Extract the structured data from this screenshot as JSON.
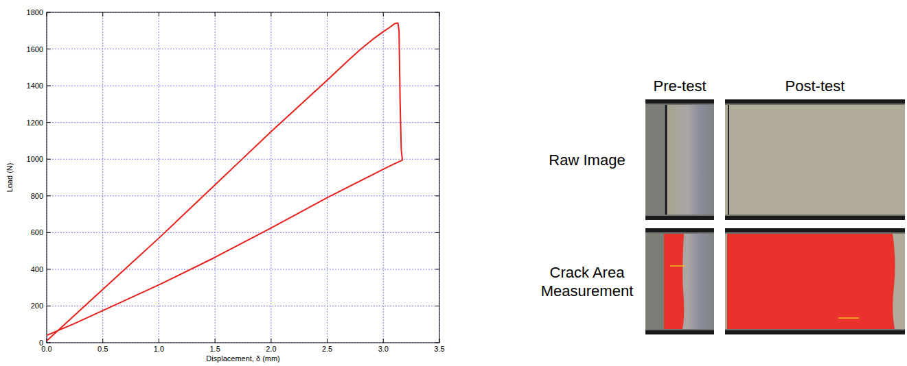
{
  "chart_data": {
    "type": "line",
    "x_label": "Displacement, δ (mm)",
    "y_label": "Load (N)",
    "x": [
      0,
      0.25,
      0.5,
      0.75,
      1.0,
      1.25,
      1.5,
      1.75,
      2.0,
      2.25,
      2.5,
      2.7,
      2.8,
      2.9,
      3.0,
      3.05,
      3.1,
      3.13,
      3.14,
      3.15,
      3.16,
      3.17,
      3.1,
      3.0,
      2.5,
      2.0,
      1.5,
      1.0,
      0.5,
      0.25,
      0
    ],
    "series": [
      {
        "color": "#e8201c",
        "line_style": "solid",
        "values": [
          10,
          150,
          290,
          430,
          570,
          715,
          860,
          1005,
          1150,
          1290,
          1430,
          1545,
          1600,
          1650,
          1695,
          1715,
          1738,
          1742,
          1700,
          1300,
          1050,
          995,
          975,
          945,
          790,
          625,
          465,
          315,
          175,
          105,
          40
        ]
      }
    ],
    "xlim": [
      0,
      3.5
    ],
    "xticks": [
      {
        "value": 0,
        "label": "0.0"
      },
      0.5,
      {
        "value": 1,
        "label": "1.0"
      },
      1.5,
      {
        "value": 2,
        "label": "2.0"
      },
      2.5,
      {
        "value": 3,
        "label": "3.0"
      },
      3.5
    ],
    "ylim": [
      0,
      1800
    ],
    "yticks": [
      0,
      200,
      400,
      600,
      800,
      1000,
      1200,
      1400,
      1600,
      1800
    ],
    "grid": true
  },
  "image_panel": {
    "column_heads": [
      "Pre-test",
      "Post-test"
    ],
    "row_labels": [
      "Raw Image",
      "Crack Area Measurement"
    ]
  }
}
